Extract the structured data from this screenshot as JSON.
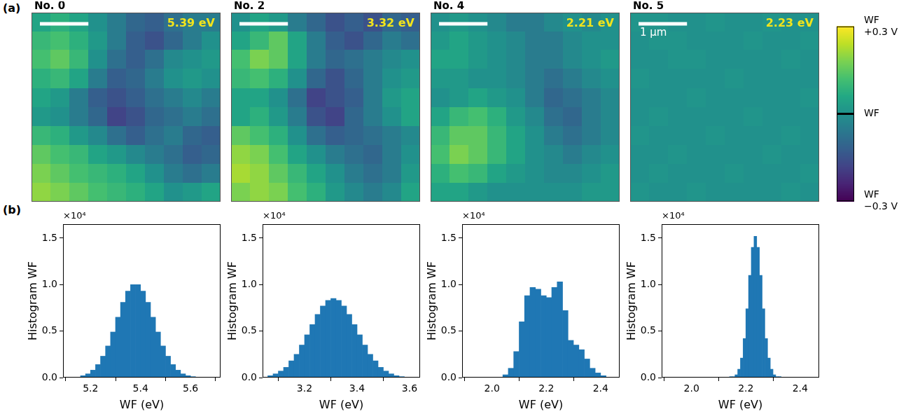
{
  "panels": [
    "(a)",
    "(b)"
  ],
  "colorbar": {
    "range": [
      -0.3,
      0.3
    ],
    "ticks": [
      {
        "value": 0.3,
        "label": "WF +0.3 V"
      },
      {
        "value": 0,
        "label": "WF"
      },
      {
        "value": -0.3,
        "label": "WF −0.3 V"
      }
    ]
  },
  "chart_data": [
    {
      "type": "heatmap",
      "title": "No. 0",
      "annotation": "5.39 eV",
      "xlim": [
        0,
        3.9
      ],
      "ylim": [
        0,
        3.9
      ],
      "tick_labels": false,
      "scale_bar": {
        "length": 1
      },
      "cells": [
        [
          0.05,
          0.08,
          0.05,
          0.0,
          -0.05,
          -0.1,
          -0.12,
          -0.08,
          -0.05,
          -0.05
        ],
        [
          0.1,
          0.12,
          0.08,
          0.02,
          -0.05,
          -0.12,
          -0.15,
          -0.1,
          -0.05,
          0.0
        ],
        [
          0.12,
          0.15,
          0.1,
          0.0,
          -0.08,
          -0.12,
          -0.08,
          -0.02,
          0.0,
          0.02
        ],
        [
          0.08,
          0.1,
          0.05,
          -0.05,
          -0.12,
          -0.1,
          -0.05,
          0.0,
          0.02,
          0.0
        ],
        [
          0.05,
          0.02,
          -0.05,
          -0.12,
          -0.15,
          -0.12,
          -0.08,
          -0.05,
          -0.02,
          -0.05
        ],
        [
          0.02,
          0.0,
          -0.05,
          -0.1,
          -0.18,
          -0.15,
          -0.1,
          -0.08,
          -0.05,
          -0.08
        ],
        [
          0.1,
          0.08,
          0.02,
          -0.02,
          -0.08,
          -0.12,
          -0.08,
          -0.05,
          -0.1,
          -0.12
        ],
        [
          0.15,
          0.12,
          0.1,
          0.05,
          0.02,
          -0.02,
          -0.05,
          -0.08,
          -0.12,
          -0.1
        ],
        [
          0.18,
          0.15,
          0.12,
          0.1,
          0.08,
          0.05,
          0.0,
          -0.05,
          -0.08,
          -0.05
        ],
        [
          0.2,
          0.18,
          0.15,
          0.12,
          0.1,
          0.08,
          0.05,
          0.0,
          0.02,
          0.05
        ]
      ]
    },
    {
      "type": "heatmap",
      "title": "No. 2",
      "annotation": "3.32 eV",
      "xlim": [
        0,
        3.9
      ],
      "ylim": [
        0,
        3.9
      ],
      "tick_labels": false,
      "scale_bar": {
        "length": 1
      },
      "cells": [
        [
          0.0,
          0.05,
          0.02,
          -0.05,
          -0.1,
          -0.15,
          -0.12,
          -0.15,
          -0.1,
          -0.12
        ],
        [
          0.05,
          0.1,
          0.15,
          0.05,
          -0.05,
          -0.12,
          -0.15,
          -0.1,
          -0.05,
          -0.08
        ],
        [
          0.12,
          0.18,
          0.15,
          0.05,
          -0.05,
          -0.1,
          -0.08,
          -0.05,
          -0.02,
          0.0
        ],
        [
          0.1,
          0.12,
          0.08,
          0.0,
          -0.1,
          -0.15,
          -0.1,
          -0.05,
          0.0,
          0.02
        ],
        [
          0.05,
          0.05,
          0.0,
          -0.08,
          -0.18,
          -0.15,
          -0.12,
          -0.05,
          0.02,
          0.05
        ],
        [
          0.05,
          0.08,
          0.02,
          -0.05,
          -0.15,
          -0.18,
          -0.1,
          -0.05,
          0.0,
          0.05
        ],
        [
          0.15,
          0.12,
          0.08,
          0.0,
          -0.08,
          -0.12,
          -0.1,
          -0.08,
          -0.05,
          -0.02
        ],
        [
          0.2,
          0.18,
          0.12,
          0.05,
          0.0,
          -0.05,
          -0.08,
          -0.1,
          -0.05,
          0.0
        ],
        [
          0.22,
          0.2,
          0.15,
          0.1,
          0.05,
          0.0,
          -0.05,
          -0.08,
          -0.05,
          0.02
        ],
        [
          0.18,
          0.2,
          0.18,
          0.12,
          0.08,
          0.02,
          -0.02,
          -0.05,
          -0.02,
          0.05
        ]
      ]
    },
    {
      "type": "heatmap",
      "title": "No. 4",
      "annotation": "2.21 eV",
      "xlim": [
        0,
        3.9
      ],
      "ylim": [
        0,
        3.9
      ],
      "tick_labels": false,
      "scale_bar": {
        "length": 1
      },
      "cells": [
        [
          0.0,
          0.02,
          0.0,
          -0.02,
          -0.05,
          -0.05,
          -0.02,
          0.0,
          -0.02,
          0.0
        ],
        [
          0.02,
          0.05,
          0.02,
          0.0,
          -0.02,
          -0.05,
          -0.05,
          -0.02,
          0.0,
          0.0
        ],
        [
          0.05,
          0.05,
          0.02,
          0.0,
          -0.02,
          -0.05,
          -0.05,
          -0.02,
          0.0,
          0.02
        ],
        [
          0.02,
          0.02,
          0.0,
          0.0,
          -0.02,
          -0.05,
          -0.08,
          -0.05,
          -0.02,
          0.0
        ],
        [
          0.0,
          0.02,
          0.05,
          0.02,
          0.0,
          -0.05,
          -0.1,
          -0.08,
          -0.05,
          -0.02
        ],
        [
          0.05,
          0.1,
          0.12,
          0.08,
          0.02,
          -0.02,
          -0.08,
          -0.1,
          -0.05,
          -0.02
        ],
        [
          0.1,
          0.15,
          0.15,
          0.1,
          0.05,
          0.0,
          -0.05,
          -0.08,
          -0.05,
          -0.02
        ],
        [
          0.12,
          0.18,
          0.15,
          0.1,
          0.05,
          0.0,
          -0.02,
          -0.05,
          -0.02,
          0.0
        ],
        [
          0.08,
          0.12,
          0.1,
          0.05,
          0.02,
          0.0,
          -0.02,
          -0.02,
          0.0,
          0.02
        ],
        [
          0.05,
          0.05,
          0.02,
          0.0,
          0.0,
          0.0,
          0.0,
          0.0,
          0.02,
          0.02
        ]
      ]
    },
    {
      "type": "heatmap",
      "title": "No. 5",
      "annotation": "2.23 eV",
      "xlim": [
        0,
        3.9
      ],
      "ylim": [
        0,
        3.9
      ],
      "tick_labels": false,
      "scale_bar": {
        "length": 1,
        "label": "1 μm"
      },
      "cells": [
        [
          0.01,
          0.01,
          0.0,
          0.0,
          0.01,
          0.0,
          0.0,
          0.01,
          0.0,
          0.0
        ],
        [
          0.0,
          0.01,
          0.01,
          0.0,
          0.0,
          0.0,
          0.01,
          0.0,
          0.0,
          0.01
        ],
        [
          0.0,
          0.0,
          0.01,
          0.01,
          0.0,
          0.0,
          0.0,
          0.0,
          0.01,
          0.0
        ],
        [
          0.01,
          0.0,
          0.0,
          0.0,
          0.0,
          0.01,
          0.0,
          0.0,
          0.0,
          0.0
        ],
        [
          0.0,
          0.0,
          0.0,
          0.01,
          0.0,
          0.0,
          0.0,
          0.0,
          0.0,
          0.01
        ],
        [
          0.0,
          0.01,
          0.0,
          0.0,
          0.0,
          0.0,
          0.01,
          0.0,
          0.0,
          0.0
        ],
        [
          0.01,
          0.0,
          0.0,
          0.0,
          0.01,
          0.0,
          0.0,
          0.0,
          0.01,
          0.0
        ],
        [
          0.0,
          0.0,
          0.01,
          0.0,
          0.0,
          0.0,
          0.0,
          0.01,
          0.0,
          0.0
        ],
        [
          0.0,
          0.01,
          0.0,
          0.0,
          0.0,
          0.01,
          0.0,
          0.0,
          0.0,
          0.01
        ],
        [
          0.01,
          0.0,
          0.0,
          0.01,
          0.0,
          0.0,
          0.0,
          0.0,
          0.01,
          0.0
        ]
      ]
    },
    {
      "type": "histogram",
      "annotation": "×10⁴",
      "x_label": "WF (eV)",
      "y_label": "Histogram WF",
      "color": "#1f77b4",
      "grid": false,
      "bins": [
        5.16,
        5.18,
        5.2,
        5.22,
        5.24,
        5.26,
        5.28,
        5.3,
        5.32,
        5.34,
        5.36,
        5.38,
        5.4,
        5.42,
        5.44,
        5.46,
        5.48,
        5.5,
        5.52,
        5.54,
        5.56,
        5.58,
        5.6,
        5.62
      ],
      "counts": [
        0.02,
        0.04,
        0.08,
        0.14,
        0.23,
        0.34,
        0.49,
        0.65,
        0.81,
        0.93,
        1.0,
        1.0,
        0.93,
        0.81,
        0.65,
        0.49,
        0.34,
        0.23,
        0.14,
        0.08,
        0.04,
        0.02,
        0.01
      ],
      "xlim": [
        5.09,
        5.72
      ],
      "xticks": [
        5.2,
        5.4,
        5.6
      ],
      "ylim": [
        0,
        1.65
      ],
      "yticks": [
        {
          "value": 0,
          "label": "0.0"
        },
        0.5,
        {
          "value": 1,
          "label": "1.0"
        },
        1.5
      ]
    },
    {
      "type": "histogram",
      "annotation": "×10⁴",
      "x_label": "WF (eV)",
      "y_label": "Histogram WF",
      "color": "#1f77b4",
      "grid": false,
      "bins": [
        3.06,
        3.08,
        3.1,
        3.12,
        3.14,
        3.16,
        3.18,
        3.2,
        3.22,
        3.24,
        3.26,
        3.28,
        3.3,
        3.32,
        3.34,
        3.36,
        3.38,
        3.4,
        3.42,
        3.44,
        3.46,
        3.48,
        3.5,
        3.52,
        3.54,
        3.56,
        3.58
      ],
      "counts": [
        0.02,
        0.04,
        0.07,
        0.11,
        0.18,
        0.25,
        0.35,
        0.46,
        0.57,
        0.68,
        0.77,
        0.83,
        0.85,
        0.83,
        0.77,
        0.68,
        0.57,
        0.46,
        0.35,
        0.25,
        0.18,
        0.11,
        0.07,
        0.04,
        0.02,
        0.01
      ],
      "xlim": [
        3.04,
        3.64
      ],
      "xticks": [
        3.2,
        3.4,
        3.6
      ],
      "ylim": [
        0,
        1.65
      ],
      "yticks": [
        {
          "value": 0,
          "label": "0.0"
        },
        0.5,
        {
          "value": 1,
          "label": "1.0"
        },
        1.5
      ]
    },
    {
      "type": "histogram",
      "annotation": "×10⁴",
      "x_label": "WF (eV)",
      "y_label": "Histogram WF",
      "color": "#1f77b4",
      "grid": false,
      "bins": [
        2.04,
        2.06,
        2.08,
        2.1,
        2.12,
        2.14,
        2.16,
        2.18,
        2.2,
        2.22,
        2.24,
        2.26,
        2.28,
        2.3,
        2.32,
        2.34,
        2.36,
        2.38,
        2.4,
        2.42
      ],
      "counts": [
        0.03,
        0.1,
        0.28,
        0.6,
        0.88,
        0.97,
        0.95,
        0.88,
        0.86,
        0.97,
        1.03,
        0.72,
        0.4,
        0.35,
        0.3,
        0.2,
        0.1,
        0.05,
        0.02
      ],
      "xlim": [
        1.89,
        2.47
      ],
      "xticks": [
        {
          "value": 2,
          "label": "2.0"
        },
        2.2,
        2.4
      ],
      "ylim": [
        0,
        1.65
      ],
      "yticks": [
        {
          "value": 0,
          "label": "0.0"
        },
        0.5,
        {
          "value": 1,
          "label": "1.0"
        },
        1.5
      ]
    },
    {
      "type": "histogram",
      "annotation": "×10⁴",
      "x_label": "WF (eV)",
      "y_label": "Histogram WF",
      "color": "#1f77b4",
      "grid": false,
      "bins": [
        2.14,
        2.15,
        2.16,
        2.17,
        2.18,
        2.19,
        2.2,
        2.21,
        2.22,
        2.23,
        2.24,
        2.25,
        2.26,
        2.27,
        2.28,
        2.29,
        2.3,
        2.31,
        2.32,
        2.33
      ],
      "counts": [
        0.01,
        0.01,
        0.03,
        0.09,
        0.21,
        0.42,
        0.74,
        1.1,
        1.4,
        1.52,
        1.4,
        1.1,
        0.74,
        0.42,
        0.21,
        0.09,
        0.03,
        0.01,
        0.01
      ],
      "xlim": [
        1.89,
        2.47
      ],
      "xticks": [
        {
          "value": 2,
          "label": "2.0"
        },
        2.2,
        2.4
      ],
      "ylim": [
        0,
        1.65
      ],
      "yticks": [
        {
          "value": 0,
          "label": "0.0"
        },
        0.5,
        {
          "value": 1,
          "label": "1.0"
        },
        1.5
      ]
    }
  ]
}
